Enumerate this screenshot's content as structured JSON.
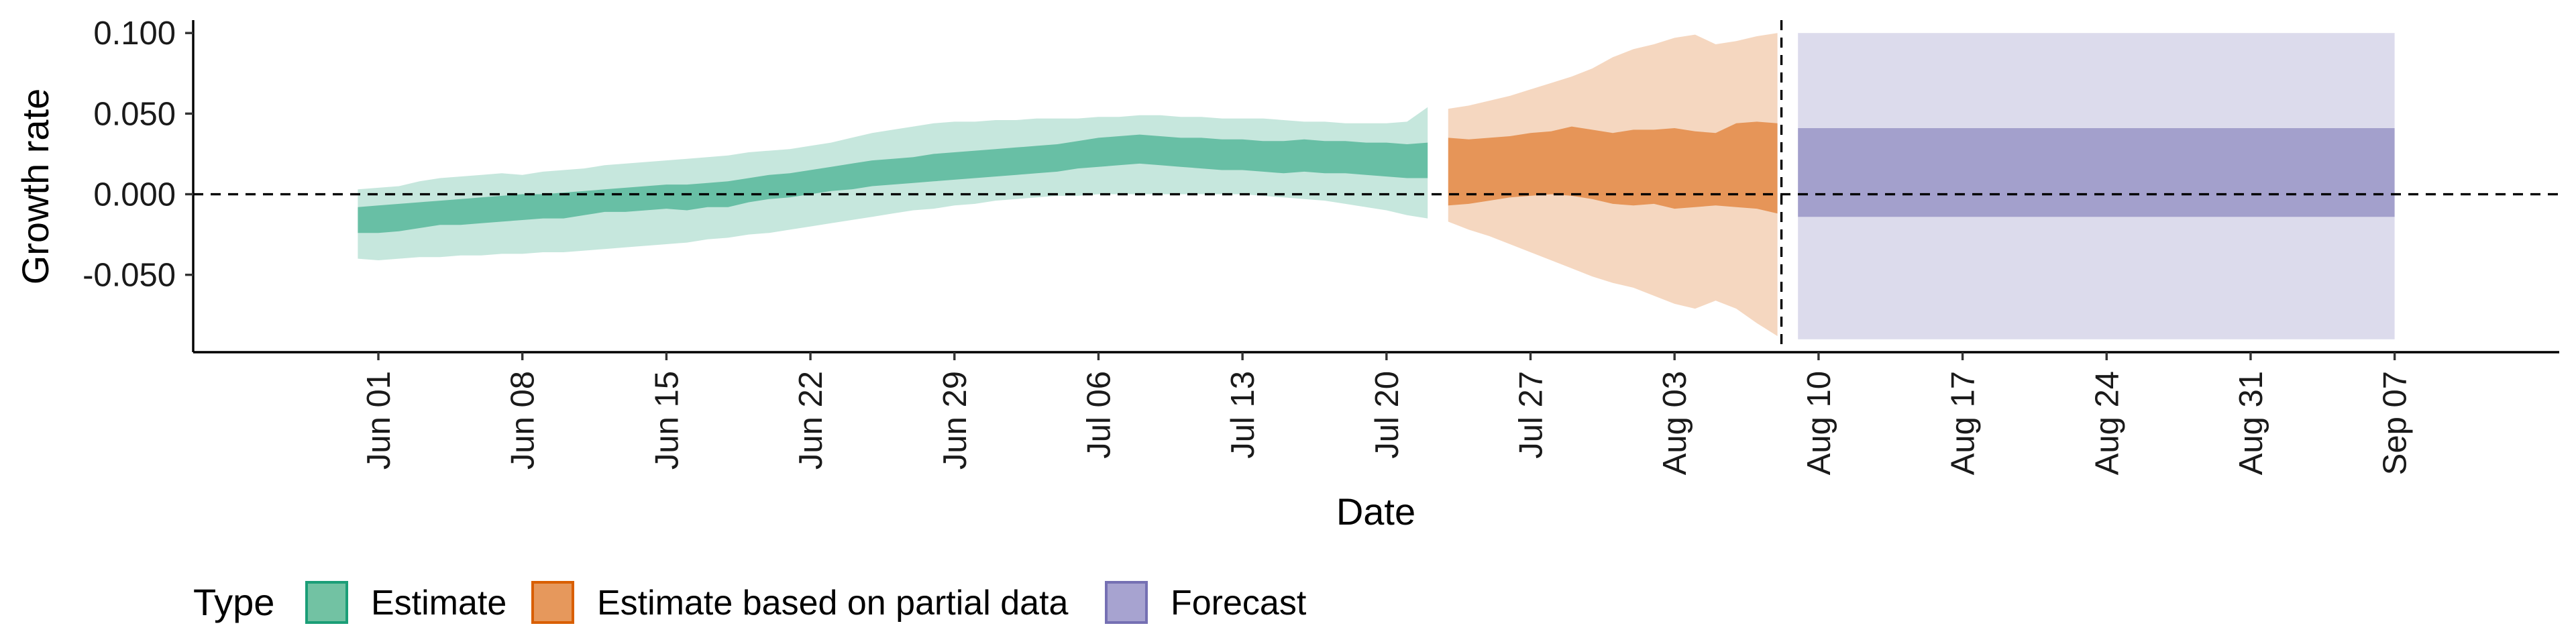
{
  "chart_data": {
    "type": "area",
    "xlabel": "Date",
    "ylabel": "Growth rate",
    "y_ticks": [
      "-0.050",
      "0.000",
      "0.050",
      "0.100"
    ],
    "y_tick_values": [
      -0.05,
      0,
      0.05,
      0.1
    ],
    "ylim": [
      -0.098,
      0.108
    ],
    "xlim": [
      "2021-05-23",
      "2021-09-15"
    ],
    "x_ticks": [
      "Jun 01",
      "Jun 08",
      "Jun 15",
      "Jun 22",
      "Jun 29",
      "Jul 06",
      "Jul 13",
      "Jul 20",
      "Jul 27",
      "Aug 03",
      "Aug 10",
      "Aug 17",
      "Aug 24",
      "Aug 31",
      "Sep 07"
    ],
    "x_tick_dates": [
      "2021-06-01",
      "2021-06-08",
      "2021-06-15",
      "2021-06-22",
      "2021-06-29",
      "2021-07-06",
      "2021-07-13",
      "2021-07-20",
      "2021-07-27",
      "2021-08-03",
      "2021-08-10",
      "2021-08-17",
      "2021-08-24",
      "2021-08-31",
      "2021-09-07"
    ],
    "reference_lines": {
      "horizontal_y": 0.0,
      "vertical_x": "2021-08-08"
    },
    "legend": {
      "title": "Type",
      "position": "bottom",
      "entries": [
        {
          "name": "Estimate",
          "fill": "#72c2a3",
          "stroke": "#1b9e77"
        },
        {
          "name": "Estimate based on partial data",
          "fill": "#e6985c",
          "stroke": "#d95f02"
        },
        {
          "name": "Forecast",
          "fill": "#a7a3d0",
          "stroke": "#7570b3"
        }
      ]
    },
    "series": [
      {
        "name": "Estimate",
        "color": "#1b9e77",
        "x": [
          "2021-05-31",
          "2021-06-01",
          "2021-06-02",
          "2021-06-03",
          "2021-06-04",
          "2021-06-05",
          "2021-06-06",
          "2021-06-07",
          "2021-06-08",
          "2021-06-09",
          "2021-06-10",
          "2021-06-11",
          "2021-06-12",
          "2021-06-13",
          "2021-06-14",
          "2021-06-15",
          "2021-06-16",
          "2021-06-17",
          "2021-06-18",
          "2021-06-19",
          "2021-06-20",
          "2021-06-21",
          "2021-06-22",
          "2021-06-23",
          "2021-06-24",
          "2021-06-25",
          "2021-06-26",
          "2021-06-27",
          "2021-06-28",
          "2021-06-29",
          "2021-06-30",
          "2021-07-01",
          "2021-07-02",
          "2021-07-03",
          "2021-07-04",
          "2021-07-05",
          "2021-07-06",
          "2021-07-07",
          "2021-07-08",
          "2021-07-09",
          "2021-07-10",
          "2021-07-11",
          "2021-07-12",
          "2021-07-13",
          "2021-07-14",
          "2021-07-15",
          "2021-07-16",
          "2021-07-17",
          "2021-07-18",
          "2021-07-19",
          "2021-07-20",
          "2021-07-21",
          "2021-07-22"
        ],
        "lower_90": [
          -0.04,
          -0.041,
          -0.04,
          -0.039,
          -0.039,
          -0.038,
          -0.038,
          -0.037,
          -0.037,
          -0.036,
          -0.036,
          -0.035,
          -0.034,
          -0.033,
          -0.032,
          -0.031,
          -0.03,
          -0.028,
          -0.027,
          -0.025,
          -0.024,
          -0.022,
          -0.02,
          -0.018,
          -0.016,
          -0.014,
          -0.012,
          -0.01,
          -0.009,
          -0.007,
          -0.006,
          -0.004,
          -0.003,
          -0.002,
          -0.001,
          -0.001,
          0.0,
          0.0,
          0.0,
          0.0,
          0.0,
          0.0,
          0.0,
          0.0,
          -0.001,
          -0.002,
          -0.003,
          -0.004,
          -0.006,
          -0.008,
          -0.01,
          -0.013,
          -0.015
        ],
        "upper_90": [
          0.003,
          0.004,
          0.005,
          0.008,
          0.01,
          0.011,
          0.012,
          0.013,
          0.012,
          0.014,
          0.015,
          0.016,
          0.018,
          0.019,
          0.02,
          0.021,
          0.022,
          0.023,
          0.024,
          0.026,
          0.027,
          0.028,
          0.03,
          0.032,
          0.035,
          0.038,
          0.04,
          0.042,
          0.044,
          0.045,
          0.045,
          0.046,
          0.046,
          0.047,
          0.047,
          0.047,
          0.048,
          0.048,
          0.049,
          0.049,
          0.048,
          0.048,
          0.047,
          0.047,
          0.047,
          0.046,
          0.045,
          0.045,
          0.044,
          0.044,
          0.044,
          0.045,
          0.054
        ],
        "lower_50": [
          -0.024,
          -0.024,
          -0.023,
          -0.021,
          -0.019,
          -0.019,
          -0.018,
          -0.017,
          -0.016,
          -0.015,
          -0.015,
          -0.013,
          -0.011,
          -0.011,
          -0.01,
          -0.009,
          -0.01,
          -0.008,
          -0.008,
          -0.005,
          -0.003,
          -0.002,
          0.0,
          0.002,
          0.003,
          0.005,
          0.006,
          0.007,
          0.008,
          0.009,
          0.01,
          0.011,
          0.012,
          0.013,
          0.014,
          0.016,
          0.017,
          0.018,
          0.019,
          0.018,
          0.017,
          0.016,
          0.015,
          0.015,
          0.014,
          0.013,
          0.014,
          0.013,
          0.013,
          0.012,
          0.011,
          0.01,
          0.01
        ],
        "upper_50": [
          -0.008,
          -0.007,
          -0.006,
          -0.005,
          -0.004,
          -0.003,
          -0.002,
          -0.001,
          0.0,
          0.0,
          0.001,
          0.002,
          0.003,
          0.004,
          0.005,
          0.006,
          0.006,
          0.007,
          0.008,
          0.01,
          0.012,
          0.013,
          0.015,
          0.017,
          0.019,
          0.021,
          0.022,
          0.023,
          0.025,
          0.026,
          0.027,
          0.028,
          0.029,
          0.03,
          0.031,
          0.033,
          0.035,
          0.036,
          0.037,
          0.036,
          0.035,
          0.035,
          0.034,
          0.034,
          0.033,
          0.033,
          0.034,
          0.033,
          0.033,
          0.032,
          0.032,
          0.031,
          0.032
        ]
      },
      {
        "name": "Estimate based on partial data",
        "color": "#d95f02",
        "x": [
          "2021-07-23",
          "2021-07-24",
          "2021-07-25",
          "2021-07-26",
          "2021-07-27",
          "2021-07-28",
          "2021-07-29",
          "2021-07-30",
          "2021-07-31",
          "2021-08-01",
          "2021-08-02",
          "2021-08-03",
          "2021-08-04",
          "2021-08-05",
          "2021-08-06",
          "2021-08-07",
          "2021-08-08"
        ],
        "lower_90": [
          -0.017,
          -0.022,
          -0.026,
          -0.031,
          -0.036,
          -0.041,
          -0.046,
          -0.051,
          -0.055,
          -0.058,
          -0.063,
          -0.068,
          -0.071,
          -0.066,
          -0.071,
          -0.08,
          -0.088
        ],
        "upper_90": [
          0.053,
          0.055,
          0.058,
          0.061,
          0.065,
          0.069,
          0.073,
          0.078,
          0.085,
          0.09,
          0.093,
          0.097,
          0.099,
          0.093,
          0.095,
          0.098,
          0.1
        ],
        "lower_50": [
          -0.007,
          -0.006,
          -0.004,
          -0.002,
          -0.001,
          0.0,
          -0.001,
          -0.003,
          -0.006,
          -0.007,
          -0.006,
          -0.009,
          -0.008,
          -0.007,
          -0.008,
          -0.009,
          -0.012
        ],
        "upper_50": [
          0.035,
          0.034,
          0.035,
          0.036,
          0.038,
          0.039,
          0.042,
          0.04,
          0.038,
          0.04,
          0.04,
          0.041,
          0.039,
          0.038,
          0.044,
          0.045,
          0.044
        ]
      },
      {
        "name": "Forecast",
        "color": "#7570b3",
        "x": [
          "2021-08-09",
          "2021-09-07"
        ],
        "lower_90": [
          -0.09,
          -0.09
        ],
        "upper_90": [
          0.1,
          0.1
        ],
        "lower_50": [
          -0.014,
          -0.014
        ],
        "upper_50": [
          0.041,
          0.041
        ]
      }
    ]
  }
}
